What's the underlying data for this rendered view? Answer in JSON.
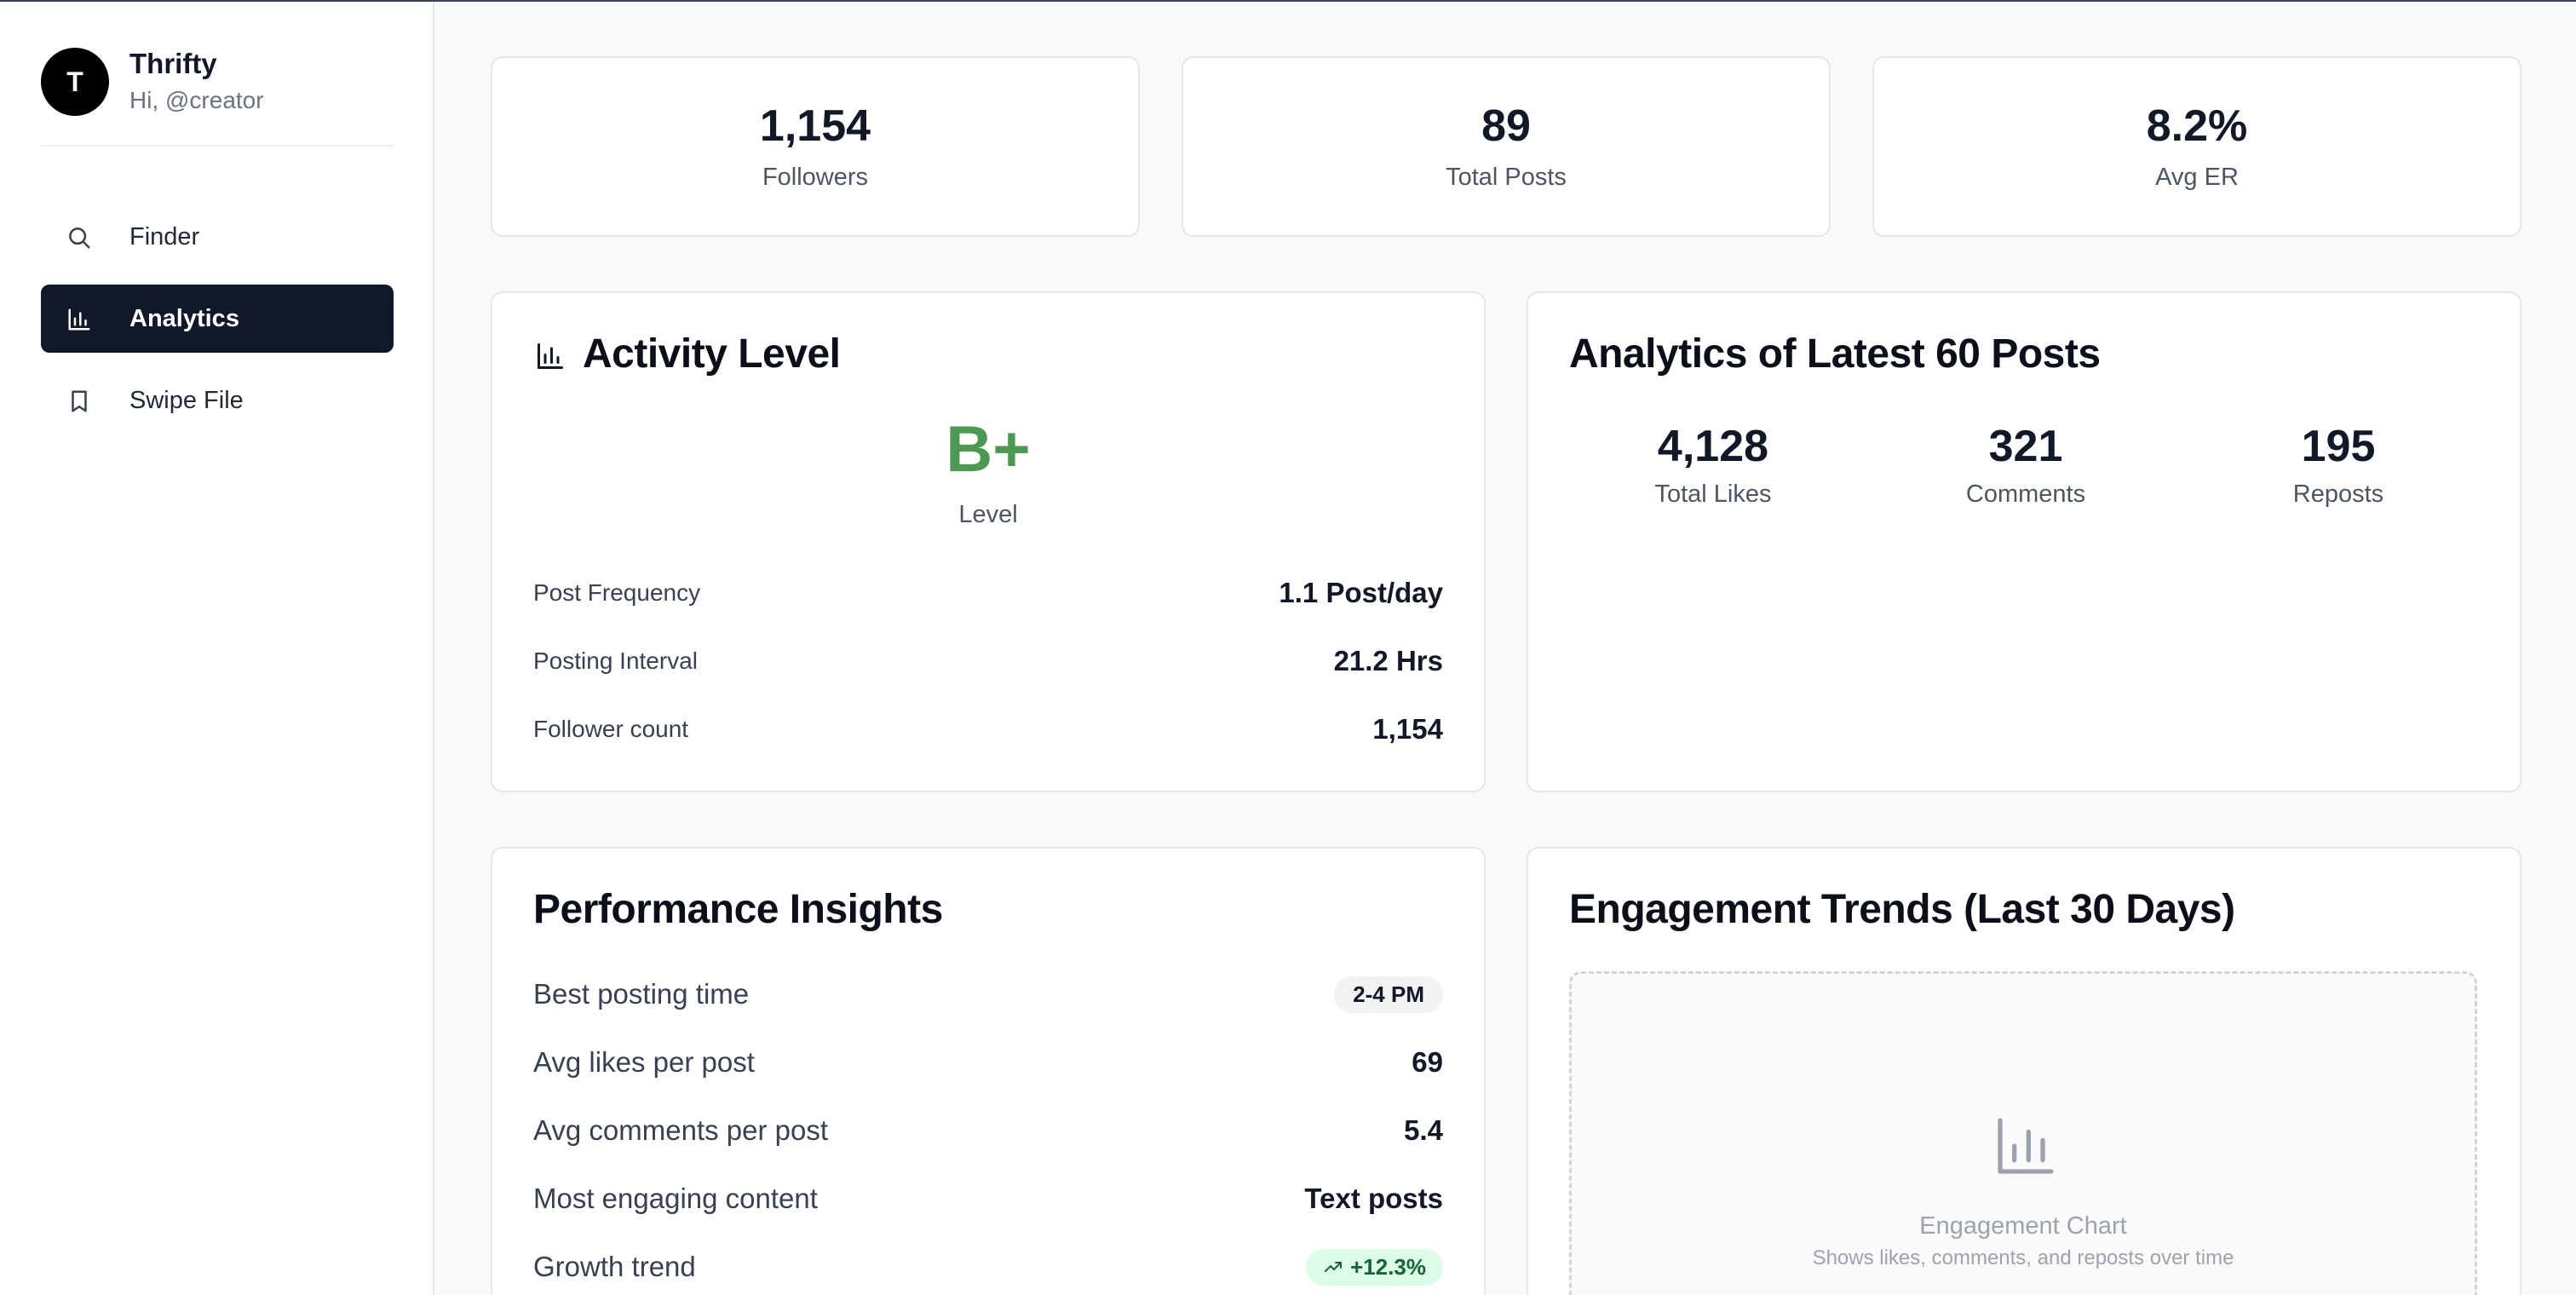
{
  "sidebar": {
    "avatar_initial": "T",
    "brand": "Thrifty",
    "greeting": "Hi, @creator",
    "nav": [
      {
        "label": "Finder",
        "icon": "search-icon"
      },
      {
        "label": "Analytics",
        "icon": "bar-chart-icon",
        "active": true
      },
      {
        "label": "Swipe File",
        "icon": "bookmark-icon"
      }
    ]
  },
  "stats": [
    {
      "value": "1,154",
      "label": "Followers"
    },
    {
      "value": "89",
      "label": "Total Posts"
    },
    {
      "value": "8.2%",
      "label": "Avg ER"
    }
  ],
  "activity": {
    "title": "Activity Level",
    "grade": "B+",
    "grade_label": "Level",
    "grade_color": "#4c9a52",
    "rows": [
      {
        "key": "Post Frequency",
        "value": "1.1 Post/day"
      },
      {
        "key": "Posting Interval",
        "value": "21.2 Hrs"
      },
      {
        "key": "Follower count",
        "value": "1,154"
      }
    ]
  },
  "latest": {
    "title": "Analytics of Latest 60 Posts",
    "items": [
      {
        "value": "4,128",
        "label": "Total Likes"
      },
      {
        "value": "321",
        "label": "Comments"
      },
      {
        "value": "195",
        "label": "Reposts"
      }
    ]
  },
  "insights": {
    "title": "Performance Insights",
    "rows": [
      {
        "key": "Best posting time",
        "value": "2-4 PM"
      },
      {
        "key": "Avg likes per post",
        "value": "69"
      },
      {
        "key": "Avg comments per post",
        "value": "5.4"
      },
      {
        "key": "Most engaging content",
        "value": "Text posts"
      },
      {
        "key": "Growth trend",
        "value": "+12.3%"
      }
    ]
  },
  "trends": {
    "title": "Engagement Trends (Last 30 Days)",
    "placeholder_title": "Engagement Chart",
    "placeholder_sub": "Shows likes, comments, and reposts over time"
  }
}
